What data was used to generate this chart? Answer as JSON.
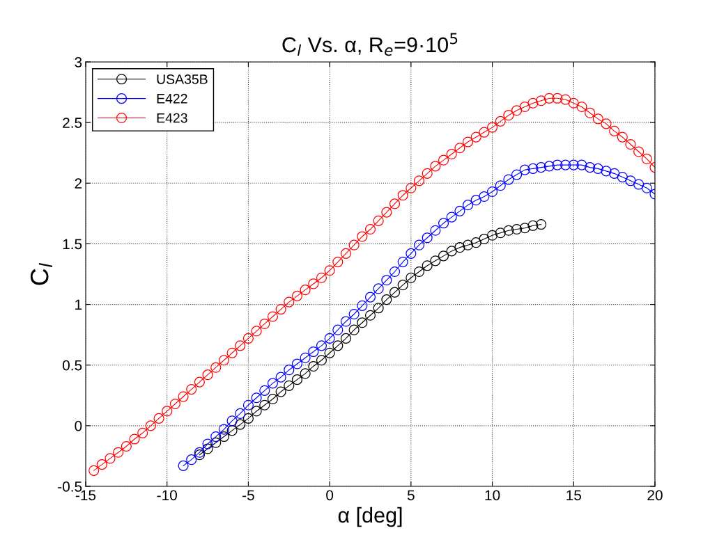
{
  "chart_data": {
    "type": "line",
    "title": "C$_{l}$ Vs. α, R$_{e}$=9·10$^{5}$",
    "xlabel": "α [deg]",
    "ylabel": "C$_{l}$",
    "xlim": [
      -15,
      20
    ],
    "xticks": [
      {
        "value": -15,
        "label": "-15"
      },
      {
        "value": -10,
        "label": "-10"
      },
      {
        "value": -5,
        "label": "-5"
      },
      0,
      5,
      10,
      15,
      20
    ],
    "ylim": [
      -0.5,
      3
    ],
    "yticks": [
      {
        "value": -0.5,
        "label": "-0.5"
      },
      0,
      0.5,
      1,
      1.5,
      2,
      2.5,
      3
    ],
    "grid": true,
    "legend": "top left",
    "marker": "circle",
    "line_style": "solid",
    "series": [
      {
        "name": "USA35B",
        "color": "#000000",
        "x": [
          -8,
          -7.5,
          -7,
          -6.5,
          -6,
          -5.5,
          -5,
          -4.5,
          -4,
          -3.5,
          -3,
          -2.5,
          -2,
          -1.5,
          -1,
          -0.5,
          0,
          0.5,
          1,
          1.5,
          2,
          2.5,
          3,
          3.5,
          4,
          4.5,
          5,
          5.5,
          6,
          6.5,
          7,
          7.5,
          8,
          8.5,
          9,
          9.5,
          10,
          10.5,
          11,
          11.5,
          12,
          12.5,
          13
        ],
        "values": [
          -0.24,
          -0.19,
          -0.14,
          -0.09,
          -0.04,
          0.01,
          0.06,
          0.12,
          0.17,
          0.22,
          0.28,
          0.33,
          0.38,
          0.43,
          0.49,
          0.54,
          0.6,
          0.66,
          0.72,
          0.79,
          0.85,
          0.91,
          0.97,
          1.04,
          1.1,
          1.16,
          1.22,
          1.27,
          1.32,
          1.36,
          1.4,
          1.44,
          1.47,
          1.49,
          1.51,
          1.54,
          1.57,
          1.59,
          1.61,
          1.62,
          1.63,
          1.65,
          1.66
        ]
      },
      {
        "name": "E422",
        "color": "#0000ff",
        "x": [
          -9,
          -8.5,
          -8,
          -7.5,
          -7,
          -6.5,
          -6,
          -5.5,
          -5,
          -4.5,
          -4,
          -3.5,
          -3,
          -2.5,
          -2,
          -1.5,
          -1,
          -0.5,
          0,
          0.5,
          1,
          1.5,
          2,
          2.5,
          3,
          3.5,
          4,
          4.5,
          5,
          5.5,
          6,
          6.5,
          7,
          7.5,
          8,
          8.5,
          9,
          9.5,
          10,
          10.5,
          11,
          11.5,
          12,
          12.5,
          13,
          13.5,
          14,
          14.5,
          15,
          15.5,
          16,
          16.5,
          17,
          17.5,
          18,
          18.5,
          19,
          19.5,
          20
        ],
        "values": [
          -0.33,
          -0.28,
          -0.22,
          -0.15,
          -0.09,
          -0.03,
          0.04,
          0.1,
          0.17,
          0.23,
          0.29,
          0.35,
          0.4,
          0.46,
          0.51,
          0.56,
          0.61,
          0.66,
          0.72,
          0.79,
          0.86,
          0.92,
          0.99,
          1.06,
          1.13,
          1.2,
          1.27,
          1.35,
          1.42,
          1.49,
          1.55,
          1.61,
          1.67,
          1.72,
          1.77,
          1.82,
          1.86,
          1.89,
          1.93,
          1.98,
          2.03,
          2.07,
          2.11,
          2.12,
          2.13,
          2.14,
          2.15,
          2.15,
          2.15,
          2.15,
          2.13,
          2.12,
          2.1,
          2.08,
          2.05,
          2.02,
          1.99,
          1.96,
          1.91
        ]
      },
      {
        "name": "E423",
        "color": "#ff0000",
        "x": [
          -14.5,
          -14,
          -13.5,
          -13,
          -12.5,
          -12,
          -11.5,
          -11,
          -10.5,
          -10,
          -9.5,
          -9,
          -8.5,
          -8,
          -7.5,
          -7,
          -6.5,
          -6,
          -5.5,
          -5,
          -4.5,
          -4,
          -3.5,
          -3,
          -2.5,
          -2,
          -1.5,
          -1,
          -0.5,
          0,
          0.5,
          1,
          1.5,
          2,
          2.5,
          3,
          3.5,
          4,
          4.5,
          5,
          5.5,
          6,
          6.5,
          7,
          7.5,
          8,
          8.5,
          9,
          9.5,
          10,
          10.5,
          11,
          11.5,
          12,
          12.5,
          13,
          13.5,
          14,
          14.5,
          15,
          15.5,
          16,
          16.5,
          17,
          17.5,
          18,
          18.5,
          19,
          19.5,
          20
        ],
        "values": [
          -0.37,
          -0.32,
          -0.27,
          -0.22,
          -0.17,
          -0.11,
          -0.06,
          0.0,
          0.06,
          0.12,
          0.18,
          0.24,
          0.3,
          0.36,
          0.42,
          0.48,
          0.54,
          0.6,
          0.66,
          0.72,
          0.78,
          0.84,
          0.9,
          0.96,
          1.02,
          1.07,
          1.12,
          1.17,
          1.22,
          1.28,
          1.35,
          1.42,
          1.49,
          1.56,
          1.62,
          1.69,
          1.76,
          1.83,
          1.9,
          1.96,
          2.02,
          2.08,
          2.14,
          2.19,
          2.24,
          2.29,
          2.34,
          2.38,
          2.42,
          2.46,
          2.51,
          2.56,
          2.6,
          2.63,
          2.66,
          2.68,
          2.7,
          2.7,
          2.69,
          2.66,
          2.63,
          2.58,
          2.53,
          2.49,
          2.43,
          2.38,
          2.32,
          2.26,
          2.2,
          2.13
        ]
      }
    ]
  }
}
